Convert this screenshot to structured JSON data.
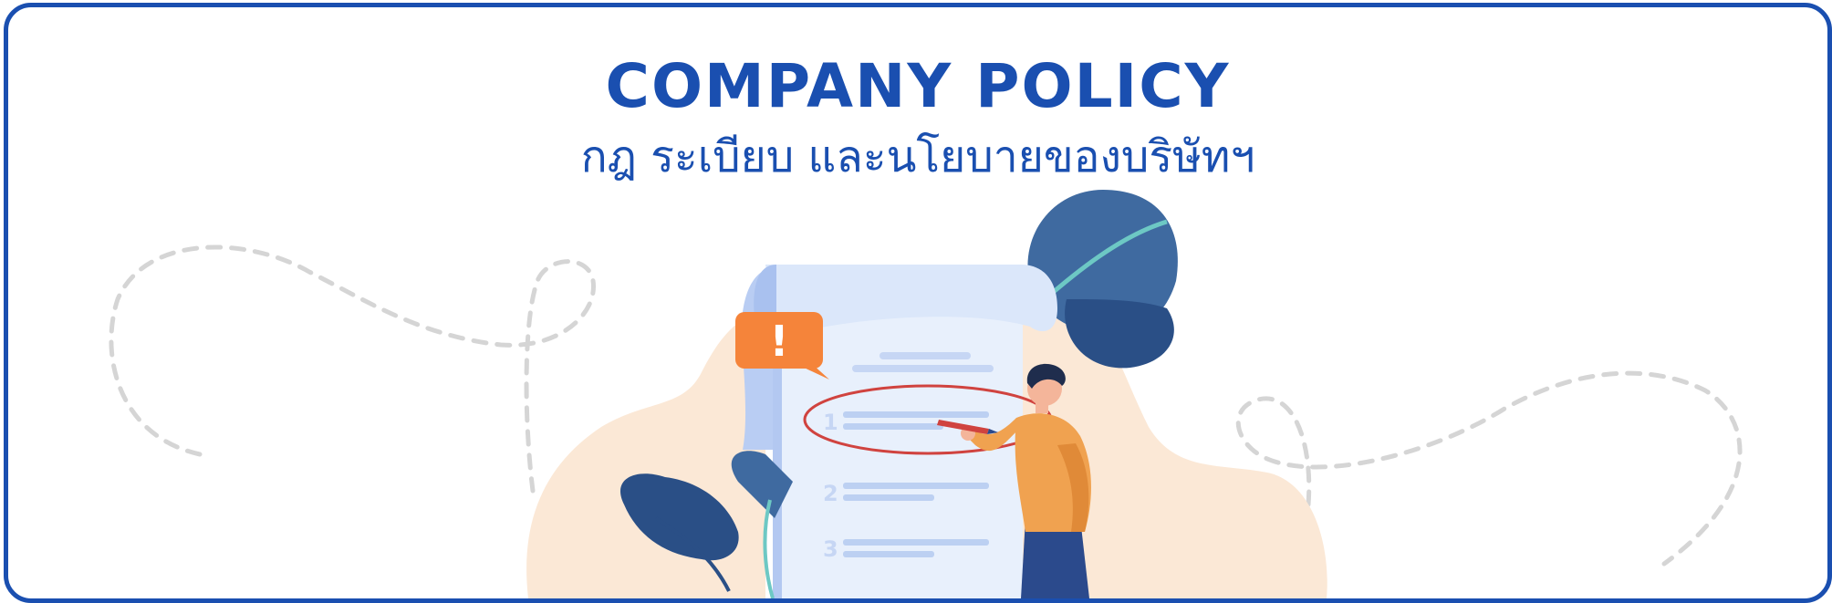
{
  "banner": {
    "title": "COMPANY POLICY",
    "subtitle": "กฎ ระเบียบ และนโยบายของบริษัทฯ"
  },
  "document": {
    "alert_mark": "!",
    "item_numbers": [
      "1",
      "2",
      "3"
    ]
  },
  "colors": {
    "brand_blue": "#1a4fb0",
    "alert_orange": "#f5843a",
    "highlight_red": "#d0433f",
    "blob_peach": "#fbe8d6",
    "leaf_navy": "#2a4f86"
  }
}
